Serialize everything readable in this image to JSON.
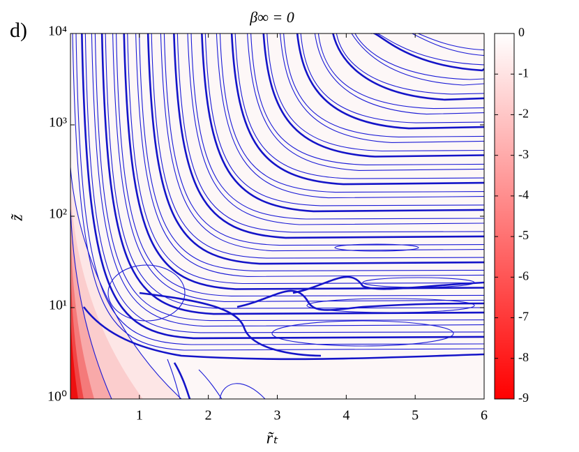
{
  "chart_data": {
    "type": "contour",
    "panel_label": "d)",
    "title": "β∞ = 0",
    "xlabel": "r̃ₜ",
    "ylabel": "z̃",
    "xlim": [
      0,
      6
    ],
    "xticks": [
      1,
      2,
      3,
      4,
      5,
      6
    ],
    "ylim": [
      1,
      10000
    ],
    "y_log_scale": true,
    "yticks": [
      {
        "value": 1,
        "label": "10⁰"
      },
      {
        "value": 10,
        "label": "10¹"
      },
      {
        "value": 100,
        "label": "10²"
      },
      {
        "value": 1000,
        "label": "10³"
      },
      {
        "value": 10000,
        "label": "10⁴"
      }
    ],
    "line_color": "#1a1ad6",
    "colormap": [
      "#ff0000",
      "#ffffff"
    ],
    "clim": [
      -9,
      0
    ],
    "cticks": [
      0,
      -1,
      -2,
      -3,
      -4,
      -5,
      -6,
      -7,
      -8,
      -9
    ]
  }
}
